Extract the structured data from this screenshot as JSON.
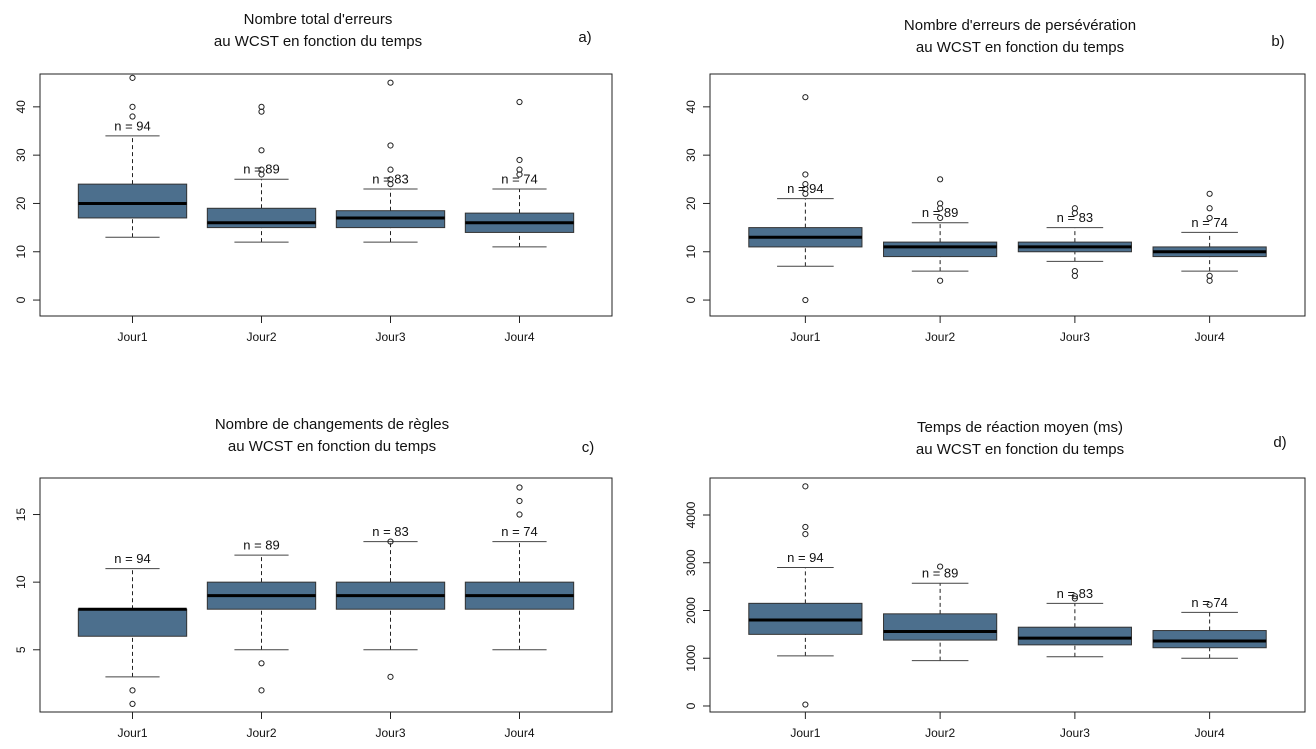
{
  "chart_data": [
    {
      "type": "box",
      "title": [
        "Nombre total d'erreurs",
        "au WCST en fonction du temps"
      ],
      "label": "a)",
      "categories": [
        "Jour1",
        "Jour2",
        "Jour3",
        "Jour4"
      ],
      "color": "#4c6f8d",
      "ylim": [
        -3.3,
        46.8
      ],
      "yticks": [
        0,
        10,
        20,
        30,
        40
      ],
      "boxes": [
        {
          "low": 13,
          "q1": 17,
          "median": 20,
          "q3": 24,
          "high": 34,
          "outliers": [
            38,
            40,
            46
          ],
          "n_label": "n = 94"
        },
        {
          "low": 12,
          "q1": 15,
          "median": 16,
          "q3": 19,
          "high": 25,
          "outliers": [
            26,
            27,
            31,
            39,
            40
          ],
          "n_label": "n = 89"
        },
        {
          "low": 12,
          "q1": 15,
          "median": 17,
          "q3": 18.5,
          "high": 23,
          "outliers": [
            24,
            25,
            27,
            32,
            45
          ],
          "n_label": "n = 83"
        },
        {
          "low": 11,
          "q1": 14,
          "median": 16,
          "q3": 18,
          "high": 23,
          "outliers": [
            26,
            27,
            29,
            41
          ],
          "n_label": "n = 74"
        }
      ]
    },
    {
      "type": "box",
      "title": [
        "Nombre d'erreurs de persévération",
        "au WCST en fonction du temps"
      ],
      "label": "b)",
      "categories": [
        "Jour1",
        "Jour2",
        "Jour3",
        "Jour4"
      ],
      "color": "#4c6f8d",
      "ylim": [
        -3.3,
        46.8
      ],
      "yticks": [
        0,
        10,
        20,
        30,
        40
      ],
      "boxes": [
        {
          "low": 7,
          "q1": 11,
          "median": 13,
          "q3": 15,
          "high": 21,
          "outliers": [
            0,
            22,
            23,
            24,
            26,
            42
          ],
          "n_label": "n = 94"
        },
        {
          "low": 6,
          "q1": 9,
          "median": 11,
          "q3": 12,
          "high": 16,
          "outliers": [
            4,
            17,
            19,
            20,
            25
          ],
          "n_label": "n = 89"
        },
        {
          "low": 8,
          "q1": 10,
          "median": 11,
          "q3": 12,
          "high": 15,
          "outliers": [
            5,
            6,
            18,
            19
          ],
          "n_label": "n = 83"
        },
        {
          "low": 6,
          "q1": 9,
          "median": 10,
          "q3": 11,
          "high": 14,
          "outliers": [
            4,
            5,
            17,
            19,
            22
          ],
          "n_label": "n = 74"
        }
      ]
    },
    {
      "type": "box",
      "title": [
        "Nombre de changements de règles",
        "au WCST en fonction du temps"
      ],
      "label": "c)",
      "categories": [
        "Jour1",
        "Jour2",
        "Jour3",
        "Jour4"
      ],
      "color": "#4c6f8d",
      "ylim": [
        0.4,
        17.7
      ],
      "yticks": [
        5,
        10,
        15
      ],
      "boxes": [
        {
          "low": 3,
          "q1": 6,
          "median": 8,
          "q3": 8,
          "high": 11,
          "outliers": [
            1,
            2
          ],
          "n_label": "n = 94"
        },
        {
          "low": 5,
          "q1": 8,
          "median": 9,
          "q3": 10,
          "high": 12,
          "outliers": [
            2,
            4
          ],
          "n_label": "n = 89"
        },
        {
          "low": 5,
          "q1": 8,
          "median": 9,
          "q3": 10,
          "high": 13,
          "outliers": [
            3,
            13
          ],
          "n_label": "n = 83"
        },
        {
          "low": 5,
          "q1": 8,
          "median": 9,
          "q3": 10,
          "high": 13,
          "outliers": [
            15,
            16,
            17
          ],
          "n_label": "n = 74"
        }
      ]
    },
    {
      "type": "box",
      "title": [
        "Temps de réaction moyen (ms)",
        "au WCST en fonction du temps"
      ],
      "label": "d)",
      "categories": [
        "Jour1",
        "Jour2",
        "Jour3",
        "Jour4"
      ],
      "color": "#4c6f8d",
      "ylim": [
        -126,
        4775
      ],
      "yticks": [
        0,
        1000,
        2000,
        3000,
        4000
      ],
      "boxes": [
        {
          "low": 1050,
          "q1": 1500,
          "median": 1800,
          "q3": 2150,
          "high": 2900,
          "outliers": [
            30,
            3600,
            3750,
            4600
          ],
          "n_label": "n = 94"
        },
        {
          "low": 950,
          "q1": 1380,
          "median": 1560,
          "q3": 1930,
          "high": 2570,
          "outliers": [
            2920
          ],
          "n_label": "n = 89"
        },
        {
          "low": 1030,
          "q1": 1280,
          "median": 1420,
          "q3": 1650,
          "high": 2150,
          "outliers": [
            2250,
            2300
          ],
          "n_label": "n = 83"
        },
        {
          "low": 1000,
          "q1": 1220,
          "median": 1360,
          "q3": 1580,
          "high": 1960,
          "outliers": [
            2120
          ],
          "n_label": "n = 74"
        }
      ]
    }
  ]
}
